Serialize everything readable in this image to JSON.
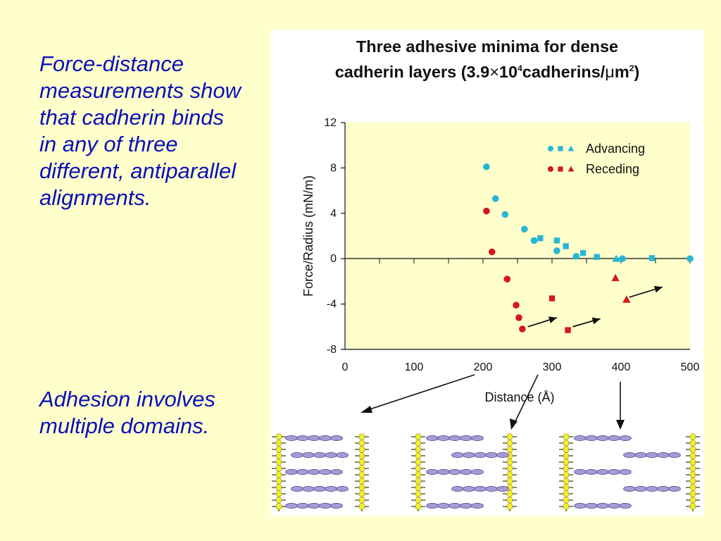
{
  "text_panel": {
    "paragraph_1": "Force-distance measurements show that cadherin binds in any of three different, antiparallel alignments.",
    "paragraph_2": "Adhesion involves multiple domains."
  },
  "colors": {
    "background": "#ffffcc",
    "text_blue": "#0a10b8",
    "plot_area": "#ffffcc",
    "advancing": "#29b6d4",
    "receding": "#d41a1a",
    "cadherin_domain": "#a69ad6",
    "membrane_lipid": "#f2ee2a"
  },
  "chart_data": {
    "type": "scatter",
    "title_line1": "Three adhesive minima for dense",
    "title_line2_prefix": "cadherin layers (3.9",
    "title_line2_times": "×",
    "title_line2_ten": "10",
    "title_line2_exp": "4",
    "title_line2_middle": "cadherins/",
    "title_line2_mu": "μ",
    "title_line2_unit": "m",
    "title_line2_unit_exp": "2",
    "title_line2_suffix": ")",
    "xlabel": "Distance (Å)",
    "ylabel": "Force/Radius (mN/m)",
    "xlim": [
      0,
      500
    ],
    "ylim": [
      -8,
      12
    ],
    "x_ticks": [
      0,
      100,
      200,
      300,
      400,
      500
    ],
    "y_ticks": [
      -8,
      -4,
      0,
      4,
      8,
      12
    ],
    "legend": {
      "position": "top-right",
      "entries": [
        {
          "label": "Advancing",
          "color": "#29b6d4"
        },
        {
          "label": "Receding",
          "color": "#d41a1a"
        }
      ]
    },
    "series": [
      {
        "name": "Advancing",
        "color": "#29b6d4",
        "circles": [
          [
            205,
            8.1
          ],
          [
            218,
            5.3
          ],
          [
            232,
            3.9
          ],
          [
            260,
            2.6
          ],
          [
            274,
            1.6
          ],
          [
            307,
            0.7
          ],
          [
            335,
            0.2
          ],
          [
            402,
            0.0
          ],
          [
            500,
            0.0
          ]
        ],
        "squares": [
          [
            283,
            1.8
          ],
          [
            307,
            1.6
          ],
          [
            320,
            1.1
          ],
          [
            345,
            0.5
          ],
          [
            365,
            0.15
          ],
          [
            445,
            0.05
          ]
        ],
        "triangles": [
          [
            393,
            0.0
          ]
        ]
      },
      {
        "name": "Receding",
        "color": "#d41a1a",
        "circles": [
          [
            205,
            4.2
          ],
          [
            213,
            0.6
          ],
          [
            235,
            -1.8
          ],
          [
            248,
            -4.1
          ],
          [
            252,
            -5.2
          ],
          [
            257,
            -6.2
          ]
        ],
        "squares": [
          [
            300,
            -3.5
          ],
          [
            323,
            -6.3
          ]
        ],
        "triangles": [
          [
            392,
            -1.7
          ],
          [
            408,
            -3.6
          ]
        ]
      }
    ],
    "arrows": [
      {
        "from": [
          265,
          -6.0
        ],
        "to": [
          307,
          -5.2
        ]
      },
      {
        "from": [
          330,
          -6.0
        ],
        "to": [
          370,
          -5.3
        ]
      },
      {
        "from": [
          412,
          -3.4
        ],
        "to": [
          460,
          -2.5
        ]
      }
    ]
  }
}
